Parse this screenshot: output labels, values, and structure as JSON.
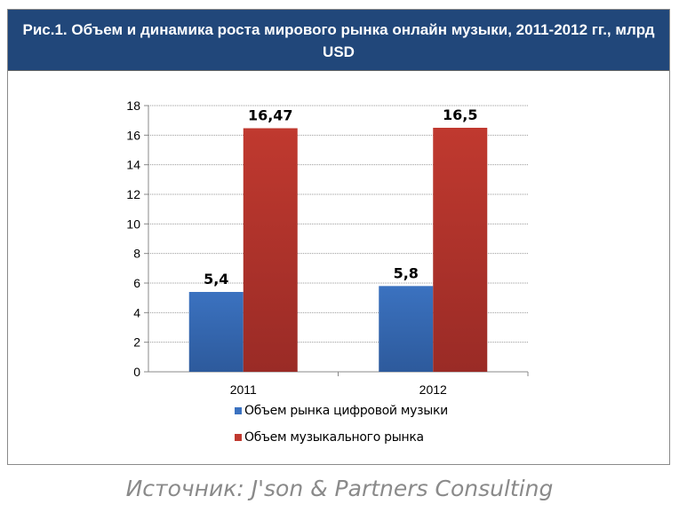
{
  "header": {
    "title": "Рис.1. Объем и динамика роста мирового рынка онлайн музыки, 2011-2012 гг., млрд USD"
  },
  "chart_data": {
    "type": "bar",
    "title": "Рис.1. Объем и динамика роста мирового рынка онлайн музыки, 2011-2012 гг., млрд USD",
    "categories": [
      "2011",
      "2012"
    ],
    "series": [
      {
        "name": "Объем рынка цифровой музыки",
        "values": [
          5.4,
          5.8
        ],
        "labels": [
          "5,4",
          "5,8"
        ],
        "color": "#3b72c0"
      },
      {
        "name": "Объем музыкального рынка",
        "values": [
          16.47,
          16.5
        ],
        "labels": [
          "16,47",
          "16,5"
        ],
        "color": "#c0392f"
      }
    ],
    "ylim": [
      0,
      18
    ],
    "yticks": [
      0,
      2,
      4,
      6,
      8,
      10,
      12,
      14,
      16,
      18
    ],
    "grid": true,
    "legend": "bottom",
    "xlabel": "",
    "ylabel": ""
  },
  "source": "Источник: J'son & Partners Consulting"
}
